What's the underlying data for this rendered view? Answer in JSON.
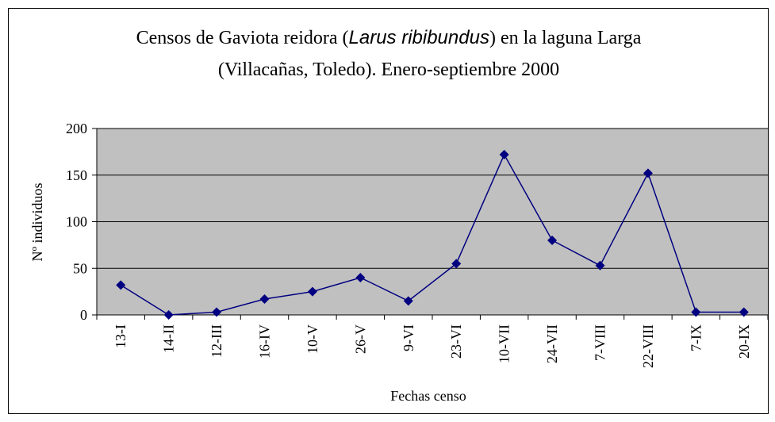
{
  "chart_data": {
    "type": "line",
    "title": [
      "Censos de Gaviota reidora (",
      "Larus ribibundus",
      ") en la laguna Larga",
      "(Villacañas, Toledo). Enero-septiembre 2000"
    ],
    "x_label": "Fechas censo",
    "y_label": "Nº individuos",
    "categories": [
      "13-I",
      "14-II",
      "12-III",
      "16-IV",
      "10-V",
      "26-V",
      "9-VI",
      "23-VI",
      "10-VII",
      "24-VII",
      "7-VIII",
      "22-VIII",
      "7-IX",
      "20-IX"
    ],
    "values": [
      32,
      0,
      3,
      17,
      25,
      40,
      15,
      55,
      172,
      80,
      53,
      152,
      3,
      3
    ],
    "color": "#000080",
    "ylim": [
      0,
      200
    ],
    "yticks": [
      0,
      50,
      100,
      150,
      200
    ],
    "grid": true
  }
}
